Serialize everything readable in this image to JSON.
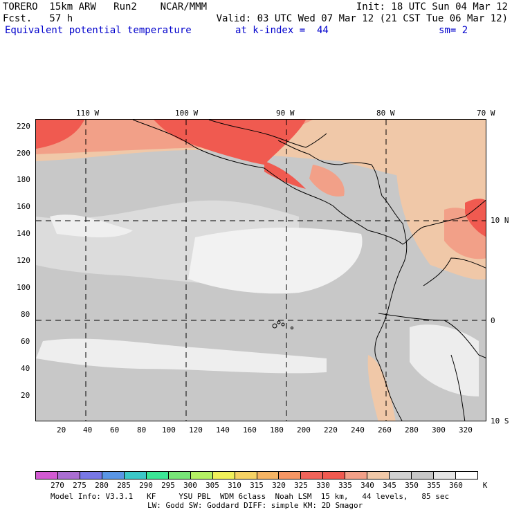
{
  "header": {
    "line1_left": "TORERO  15km ARW   Run2    NCAR/MMM",
    "line1_right": "Init: 18 UTC Sun 04 Mar 12",
    "line2_left": "Fcst.   57 h",
    "line2_right": "Valid: 03 UTC Wed 07 Mar 12 (21 CST Tue 06 Mar 12)",
    "field_name": "Equivalent potential temperature",
    "k_index": "at k-index =  44",
    "smoothing": "sm= 2"
  },
  "map": {
    "lon_labels": [
      "110 W",
      "100 W",
      "90 W",
      "80 W",
      "70 W"
    ],
    "lat_labels": [
      "10 N",
      "0",
      "10 S"
    ],
    "y_ticks": [
      "220",
      "200",
      "180",
      "160",
      "140",
      "120",
      "100",
      "80",
      "60",
      "40",
      "20"
    ],
    "x_ticks": [
      "20",
      "40",
      "60",
      "80",
      "100",
      "120",
      "140",
      "160",
      "180",
      "200",
      "220",
      "240",
      "260",
      "280",
      "300",
      "320"
    ],
    "region_colors": {
      "background_gray": "#c8c8c8",
      "light_gray": "#e4e4e4",
      "white": "#f6f6f6",
      "tan": "#f0c8a8",
      "salmon": "#f2a088",
      "red": "#f05a50"
    }
  },
  "colorbar": {
    "colors": [
      "#d25ad2",
      "#aa6ed2",
      "#7878e6",
      "#5a96e6",
      "#3cc8c8",
      "#3ce696",
      "#78e678",
      "#b4f064",
      "#f0f05a",
      "#f5d264",
      "#f5b464",
      "#f59664",
      "#f0645a",
      "#f05a50",
      "#f2a088",
      "#f0c8a8",
      "#d2d2d2",
      "#c8c8c8",
      "#e6e6e6",
      "#ffffff"
    ],
    "labels": [
      "270",
      "275",
      "280",
      "285",
      "290",
      "295",
      "300",
      "305",
      "310",
      "315",
      "320",
      "325",
      "330",
      "335",
      "340",
      "345",
      "350",
      "355",
      "360"
    ],
    "unit": "K"
  },
  "footer": {
    "line1": "Model Info: V3.3.1   KF     YSU PBL  WDM 6class  Noah LSM  15 km,   44 levels,   85 sec",
    "line2": "LW: Godd SW: Goddard DIFF: simple KM: 2D Smagor"
  }
}
